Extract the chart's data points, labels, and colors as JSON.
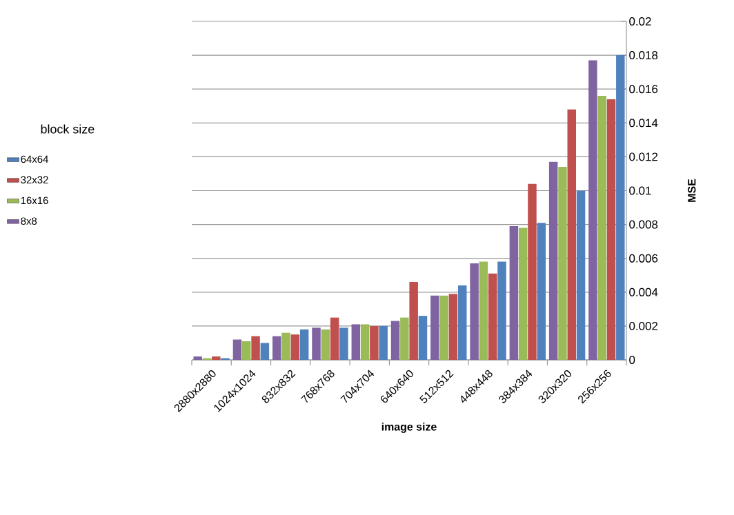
{
  "chart_data": {
    "type": "bar",
    "xlabel": "image size",
    "ylabel": "MSE",
    "legend_title": "block size",
    "categories": [
      "2880x2880",
      "1024x1024",
      "832x832",
      "768x768",
      "704x704",
      "640x640",
      "512x512",
      "448x448",
      "384x384",
      "320x320",
      "256x256"
    ],
    "series": [
      {
        "name": "8x8",
        "color": "#8064a2",
        "values": [
          0.0002,
          0.0012,
          0.0014,
          0.0019,
          0.0021,
          0.0023,
          0.0038,
          0.0057,
          0.0079,
          0.0117,
          0.0177
        ]
      },
      {
        "name": "16x16",
        "color": "#9bbb59",
        "values": [
          0.0001,
          0.0011,
          0.0016,
          0.0018,
          0.0021,
          0.0025,
          0.0038,
          0.0058,
          0.0078,
          0.0114,
          0.0156
        ]
      },
      {
        "name": "32x32",
        "color": "#c0504d",
        "values": [
          0.0002,
          0.0014,
          0.0015,
          0.0025,
          0.002,
          0.0046,
          0.0039,
          0.0051,
          0.0104,
          0.0148,
          0.0154
        ]
      },
      {
        "name": "64x64",
        "color": "#4f81bd",
        "values": [
          0.0001,
          0.001,
          0.0018,
          0.0019,
          0.002,
          0.0026,
          0.0044,
          0.0058,
          0.0081,
          0.01,
          0.018
        ]
      }
    ],
    "ylim": [
      0,
      0.02
    ],
    "yticks": [
      0,
      0.002,
      0.004,
      0.006,
      0.008,
      0.01,
      0.012,
      0.014,
      0.016,
      0.018,
      0.02
    ],
    "grid": "y",
    "legend": "left"
  }
}
